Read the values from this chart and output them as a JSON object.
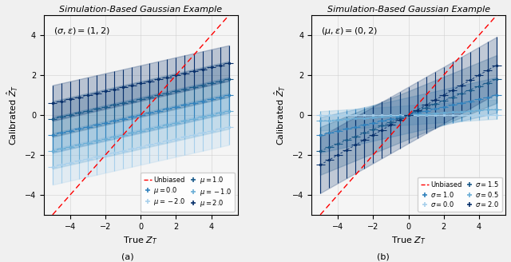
{
  "title": "Simulation-Based Gaussian Example",
  "xlabel": "True $Z_T$",
  "ylabel": "Calibrated $\\hat{Z}_T$",
  "xlim": [
    -5.5,
    5.5
  ],
  "ylim": [
    -5.0,
    5.0
  ],
  "xticks": [
    -4,
    -2,
    0,
    2,
    4
  ],
  "yticks": [
    -4,
    -2,
    0,
    2,
    4
  ],
  "panel_a": {
    "annotation": "$(\\sigma, \\varepsilon) = (1, 2)$",
    "mu_values": [
      -2.0,
      -1.0,
      0.0,
      1.0,
      2.0
    ],
    "sigma_fixed": 1.0,
    "eps_fixed": 2.0
  },
  "panel_b": {
    "annotation": "$(\\mu, \\varepsilon) = (0, 2)$",
    "sigma_values": [
      0.0,
      0.5,
      1.0,
      1.5,
      2.0
    ],
    "mu_fixed": 0.0,
    "eps_fixed": 2.0
  },
  "colors_a": [
    "#a8d0ec",
    "#6baed6",
    "#3182bd",
    "#1a5a8a",
    "#08306b"
  ],
  "colors_b": [
    "#a8d0ec",
    "#6baed6",
    "#3182bd",
    "#1a5a8a",
    "#08306b"
  ],
  "sublabels": [
    "(a)",
    "(b)"
  ],
  "background_color": "#f5f5f5",
  "grid_color": "#cccccc"
}
